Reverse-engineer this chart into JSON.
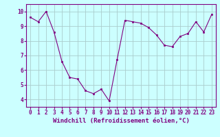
{
  "x": [
    0,
    1,
    2,
    3,
    4,
    5,
    6,
    7,
    8,
    9,
    10,
    11,
    12,
    13,
    14,
    15,
    16,
    17,
    18,
    19,
    20,
    21,
    22,
    23
  ],
  "y": [
    9.6,
    9.3,
    10.0,
    8.6,
    6.6,
    5.5,
    5.4,
    4.6,
    4.4,
    4.7,
    3.9,
    6.7,
    9.4,
    9.3,
    9.2,
    8.9,
    8.4,
    7.7,
    7.6,
    8.3,
    8.5,
    9.3,
    8.6,
    9.8
  ],
  "line_color": "#800080",
  "marker": "s",
  "marker_size": 2,
  "background_color": "#ccffff",
  "grid_color": "#aacccc",
  "xlabel": "Windchill (Refroidissement éolien,°C)",
  "xlim": [
    -0.5,
    23.5
  ],
  "ylim": [
    3.5,
    10.5
  ],
  "yticks": [
    4,
    5,
    6,
    7,
    8,
    9,
    10
  ],
  "xticks": [
    0,
    1,
    2,
    3,
    4,
    5,
    6,
    7,
    8,
    9,
    10,
    11,
    12,
    13,
    14,
    15,
    16,
    17,
    18,
    19,
    20,
    21,
    22,
    23
  ],
  "tick_fontsize": 5.5,
  "xlabel_fontsize": 6.5,
  "spine_color": "#800080"
}
